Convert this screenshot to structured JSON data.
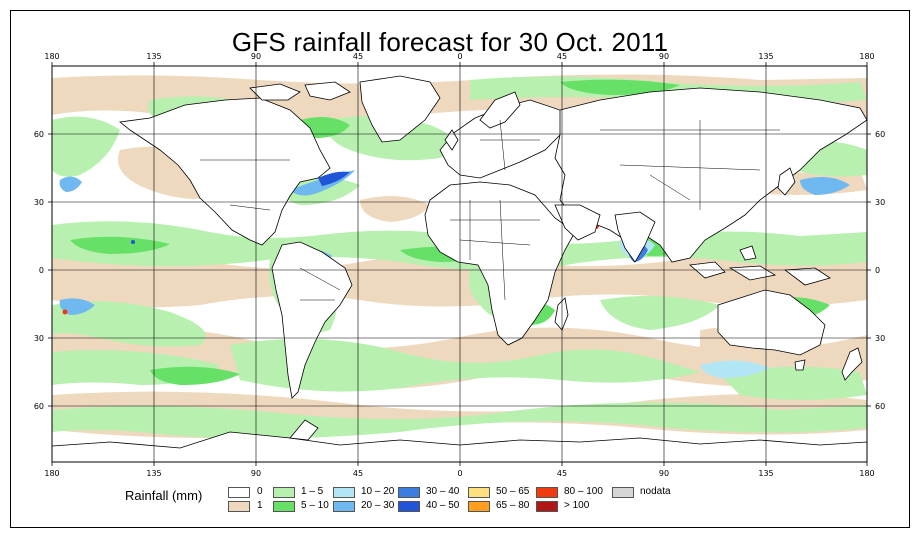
{
  "title": "GFS rainfall forecast for 30 Oct. 2011",
  "map": {
    "projection": "equirectangular",
    "lon_labels_top": [
      "180",
      "135",
      "90",
      "45",
      "0",
      "45",
      "90",
      "135",
      "180"
    ],
    "lon_labels_bottom": [
      "180",
      "135",
      "90",
      "45",
      "0",
      "45",
      "90",
      "135",
      "180"
    ],
    "lat_labels_left": [
      "60",
      "30",
      "0",
      "30",
      "60"
    ],
    "lat_labels_right": [
      "60",
      "30",
      "0",
      "30",
      "60"
    ],
    "lat_range": [
      -85,
      85
    ],
    "lon_range": [
      -180,
      180
    ]
  },
  "legend": {
    "title": "Rainfall (mm)",
    "classes": [
      {
        "label": "0",
        "color": "#ffffff"
      },
      {
        "label": "1",
        "color": "#eed9bf"
      },
      {
        "label": "1 – 5",
        "color": "#b8f0b0"
      },
      {
        "label": "5 – 10",
        "color": "#66e066"
      },
      {
        "label": "10 – 20",
        "color": "#b3e6f5"
      },
      {
        "label": "20 – 30",
        "color": "#70b8f0"
      },
      {
        "label": "30 – 40",
        "color": "#3c7ee0"
      },
      {
        "label": "40 – 50",
        "color": "#1f55d6"
      },
      {
        "label": "50 – 65",
        "color": "#ffe080"
      },
      {
        "label": "65 – 80",
        "color": "#ff9e1f"
      },
      {
        "label": "80 – 100",
        "color": "#f03a10"
      },
      {
        "label": "> 100",
        "color": "#b01818"
      },
      {
        "label": "nodata",
        "color": "#d6d6d6"
      }
    ]
  }
}
